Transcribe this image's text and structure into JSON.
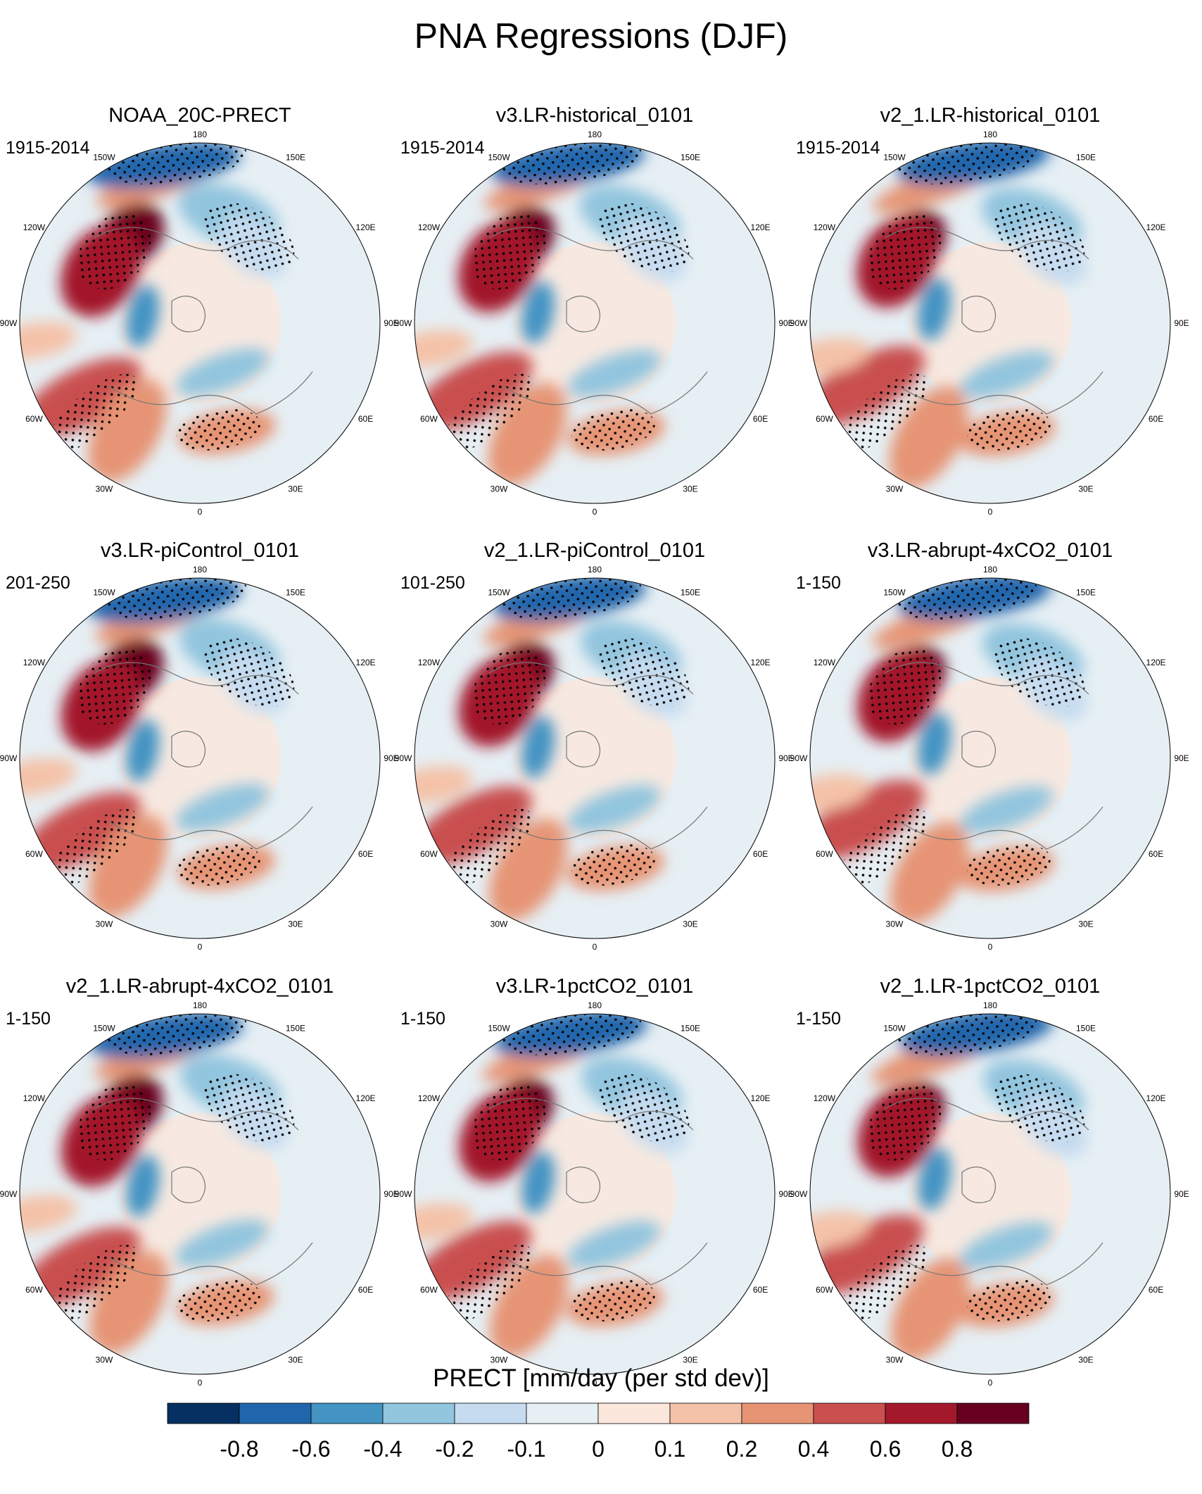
{
  "figure": {
    "title": "PNA Regressions (DJF)",
    "colorbar_label": "PRECT [mm/day (per std dev)]"
  },
  "chart_data": {
    "type": "heatmap",
    "projection": "north-polar-stereographic",
    "season": "DJF",
    "variable": "PRECT",
    "units": "mm/day (per std dev)",
    "longitude_labels": [
      "180",
      "150E",
      "120E",
      "90E",
      "60E",
      "30E",
      "0",
      "30W",
      "60W",
      "90W",
      "120W",
      "150W"
    ],
    "colorbar": {
      "levels": [
        "-0.8",
        "-0.6",
        "-0.4",
        "-0.2",
        "-0.1",
        "0",
        "0.1",
        "0.2",
        "0.4",
        "0.6",
        "0.8"
      ],
      "colors": [
        "#053061",
        "#2166ac",
        "#4393c3",
        "#92c5de",
        "#c6dbef",
        "#e6eff4",
        "#fbe7dc",
        "#f4c2a8",
        "#e69474",
        "#c9504f",
        "#a3182b",
        "#67001f"
      ]
    },
    "panels": [
      {
        "title": "NOAA_20C-PRECT",
        "period": "1915-2014"
      },
      {
        "title": "v3.LR-historical_0101",
        "period": "1915-2014"
      },
      {
        "title": "v2_1.LR-historical_0101",
        "period": "1915-2014"
      },
      {
        "title": "v3.LR-piControl_0101",
        "period": "201-250"
      },
      {
        "title": "v2_1.LR-piControl_0101",
        "period": "101-250"
      },
      {
        "title": "v3.LR-abrupt-4xCO2_0101",
        "period": "1-150"
      },
      {
        "title": "v2_1.LR-abrupt-4xCO2_0101",
        "period": "1-150"
      },
      {
        "title": "v3.LR-1pctCO2_0101",
        "period": "1-150"
      },
      {
        "title": "v2_1.LR-1pctCO2_0101",
        "period": "1-150"
      }
    ]
  }
}
